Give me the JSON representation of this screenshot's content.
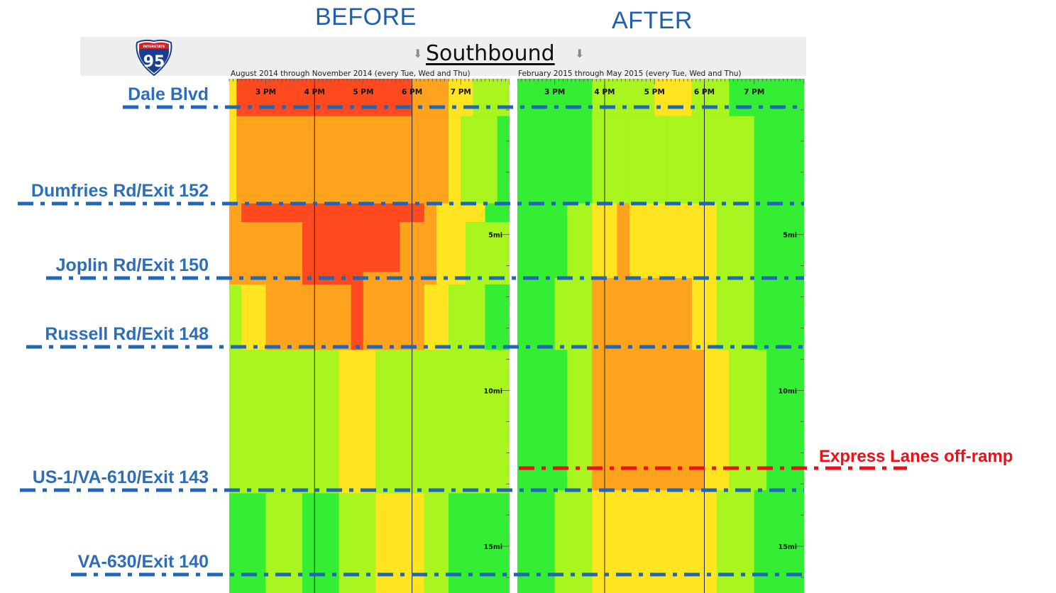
{
  "header": {
    "before_title": "BEFORE",
    "after_title": "AFTER",
    "direction_title": "Southbound",
    "shield_top_text": "INTERSTATE",
    "shield_number": "95",
    "before_range": "August 2014 through November 2014 (every Tue, Wed and Thu)",
    "after_range": "February 2015 through May 2015 (every Tue, Wed and Thu)"
  },
  "locations": [
    {
      "name": "Dale Blvd",
      "mile": 0.9
    },
    {
      "name": "Dumfries Rd/Exit 152",
      "mile": 4.0
    },
    {
      "name": "Joplin Rd/Exit 150",
      "mile": 6.4
    },
    {
      "name": "Russell Rd/Exit 148",
      "mile": 8.6
    },
    {
      "name": "US-1/VA-610/Exit 143",
      "mile": 13.2
    },
    {
      "name": "VA-630/Exit 140",
      "mile": 15.9
    }
  ],
  "express_lanes": {
    "label": "Express Lanes off-ramp",
    "mile": 12.5
  },
  "colors": {
    "red": "#ff4a1f",
    "orange": "#ffa31f",
    "yellow": "#ffe41f",
    "yellow_green": "#a8f51f",
    "green": "#33ee33",
    "location_line": "#1f67b8",
    "offramp_line": "#e8121b",
    "title_blue": "#1f5fb0"
  },
  "chart_data": {
    "type": "heatmap",
    "title": "Southbound",
    "x_unit": "time of day",
    "x_range": [
      "2:15 PM",
      "8:00 PM"
    ],
    "x_ticks": [
      "3 PM",
      "4 PM",
      "5 PM",
      "6 PM",
      "7 PM"
    ],
    "y_unit": "miles",
    "y_range": [
      0,
      16.5
    ],
    "y_ticks": [
      "5mi",
      "10mi",
      "15mi"
    ],
    "grid": "hour lines at 4 PM and 6 PM",
    "congestion_levels": [
      "red",
      "orange",
      "yellow",
      "yellow_green",
      "green"
    ],
    "panels": [
      {
        "name": "BEFORE",
        "period": "August 2014 through November 2014 (every Tue, Wed and Thu)",
        "cells": [
          {
            "mile": [
              0.0,
              1.2
            ],
            "time": [
              2.25,
              2.4
            ],
            "level": "yellow"
          },
          {
            "mile": [
              0.0,
              1.2
            ],
            "time": [
              2.4,
              6.0
            ],
            "level": "red"
          },
          {
            "mile": [
              0.0,
              1.2
            ],
            "time": [
              6.0,
              6.75
            ],
            "level": "orange"
          },
          {
            "mile": [
              0.0,
              1.2
            ],
            "time": [
              6.75,
              7.25
            ],
            "level": "yellow"
          },
          {
            "mile": [
              0.0,
              1.2
            ],
            "time": [
              7.25,
              8.0
            ],
            "level": "yellow_green"
          },
          {
            "mile": [
              1.2,
              4.0
            ],
            "time": [
              2.25,
              2.4
            ],
            "level": "yellow"
          },
          {
            "mile": [
              1.2,
              4.0
            ],
            "time": [
              2.4,
              6.75
            ],
            "level": "orange"
          },
          {
            "mile": [
              1.2,
              4.0
            ],
            "time": [
              6.75,
              7.0
            ],
            "level": "yellow"
          },
          {
            "mile": [
              1.2,
              4.0
            ],
            "time": [
              7.0,
              7.75
            ],
            "level": "yellow_green"
          },
          {
            "mile": [
              1.2,
              4.0
            ],
            "time": [
              7.75,
              8.0
            ],
            "level": "green"
          },
          {
            "mile": [
              4.0,
              4.6
            ],
            "time": [
              2.25,
              2.5
            ],
            "level": "orange"
          },
          {
            "mile": [
              4.0,
              4.6
            ],
            "time": [
              2.5,
              6.25
            ],
            "level": "red"
          },
          {
            "mile": [
              4.0,
              4.6
            ],
            "time": [
              6.25,
              6.5
            ],
            "level": "orange"
          },
          {
            "mile": [
              4.0,
              4.6
            ],
            "time": [
              6.5,
              7.5
            ],
            "level": "yellow"
          },
          {
            "mile": [
              4.0,
              4.6
            ],
            "time": [
              7.5,
              8.0
            ],
            "level": "green"
          },
          {
            "mile": [
              4.6,
              6.2
            ],
            "time": [
              2.25,
              3.75
            ],
            "level": "orange"
          },
          {
            "mile": [
              4.6,
              6.2
            ],
            "time": [
              3.75,
              5.75
            ],
            "level": "red"
          },
          {
            "mile": [
              4.6,
              6.2
            ],
            "time": [
              5.75,
              6.5
            ],
            "level": "orange"
          },
          {
            "mile": [
              4.6,
              6.2
            ],
            "time": [
              6.5,
              7.1
            ],
            "level": "yellow"
          },
          {
            "mile": [
              4.6,
              6.2
            ],
            "time": [
              7.1,
              8.0
            ],
            "level": "yellow_green"
          },
          {
            "mile": [
              6.2,
              6.6
            ],
            "time": [
              2.25,
              3.75
            ],
            "level": "orange"
          },
          {
            "mile": [
              6.2,
              6.6
            ],
            "time": [
              3.75,
              5.0
            ],
            "level": "red"
          },
          {
            "mile": [
              6.2,
              6.6
            ],
            "time": [
              5.0,
              6.5
            ],
            "level": "orange"
          },
          {
            "mile": [
              6.2,
              6.6
            ],
            "time": [
              6.5,
              7.1
            ],
            "level": "yellow"
          },
          {
            "mile": [
              6.2,
              6.6
            ],
            "time": [
              7.1,
              8.0
            ],
            "level": "yellow_green"
          },
          {
            "mile": [
              6.6,
              8.7
            ],
            "time": [
              2.25,
              2.5
            ],
            "level": "yellow_green"
          },
          {
            "mile": [
              6.6,
              8.7
            ],
            "time": [
              2.5,
              3.0
            ],
            "level": "yellow"
          },
          {
            "mile": [
              6.6,
              8.7
            ],
            "time": [
              3.0,
              4.75
            ],
            "level": "orange"
          },
          {
            "mile": [
              6.6,
              8.7
            ],
            "time": [
              4.75,
              5.0
            ],
            "level": "red"
          },
          {
            "mile": [
              6.6,
              8.7
            ],
            "time": [
              5.0,
              6.25
            ],
            "level": "orange"
          },
          {
            "mile": [
              6.6,
              8.7
            ],
            "time": [
              6.25,
              6.75
            ],
            "level": "yellow"
          },
          {
            "mile": [
              6.6,
              8.7
            ],
            "time": [
              6.75,
              7.5
            ],
            "level": "yellow_green"
          },
          {
            "mile": [
              6.6,
              8.7
            ],
            "time": [
              7.5,
              8.0
            ],
            "level": "green"
          },
          {
            "mile": [
              8.7,
              13.3
            ],
            "time": [
              2.25,
              4.5
            ],
            "level": "yellow_green"
          },
          {
            "mile": [
              8.7,
              13.3
            ],
            "time": [
              4.5,
              5.25
            ],
            "level": "yellow"
          },
          {
            "mile": [
              8.7,
              13.3
            ],
            "time": [
              5.25,
              8.0
            ],
            "level": "yellow_green"
          },
          {
            "mile": [
              13.3,
              16.5
            ],
            "time": [
              2.25,
              3.0
            ],
            "level": "green"
          },
          {
            "mile": [
              13.3,
              16.5
            ],
            "time": [
              3.0,
              3.75
            ],
            "level": "yellow_green"
          },
          {
            "mile": [
              13.3,
              16.5
            ],
            "time": [
              3.75,
              4.5
            ],
            "level": "green"
          },
          {
            "mile": [
              13.3,
              16.5
            ],
            "time": [
              4.5,
              5.25
            ],
            "level": "yellow_green"
          },
          {
            "mile": [
              13.3,
              16.5
            ],
            "time": [
              5.25,
              6.25
            ],
            "level": "yellow"
          },
          {
            "mile": [
              13.3,
              16.5
            ],
            "time": [
              6.25,
              6.75
            ],
            "level": "yellow_green"
          },
          {
            "mile": [
              13.3,
              16.5
            ],
            "time": [
              6.75,
              8.0
            ],
            "level": "green"
          }
        ]
      },
      {
        "name": "AFTER",
        "period": "February 2015 through May 2015 (every Tue, Wed and Thu)",
        "cells": [
          {
            "mile": [
              0.0,
              1.2
            ],
            "time": [
              2.25,
              3.75
            ],
            "level": "green"
          },
          {
            "mile": [
              0.0,
              1.2
            ],
            "time": [
              3.75,
              5.0
            ],
            "level": "yellow_green"
          },
          {
            "mile": [
              0.0,
              1.2
            ],
            "time": [
              5.0,
              5.75
            ],
            "level": "yellow"
          },
          {
            "mile": [
              0.0,
              1.2
            ],
            "time": [
              5.75,
              6.5
            ],
            "level": "yellow_green"
          },
          {
            "mile": [
              0.0,
              1.2
            ],
            "time": [
              6.5,
              8.0
            ],
            "level": "green"
          },
          {
            "mile": [
              1.2,
              4.0
            ],
            "time": [
              2.25,
              3.75
            ],
            "level": "green"
          },
          {
            "mile": [
              1.2,
              4.0
            ],
            "time": [
              3.75,
              4.5
            ],
            "level": "yellow_green"
          },
          {
            "mile": [
              1.2,
              4.0
            ],
            "time": [
              4.5,
              5.25
            ],
            "level": "yellow_green"
          },
          {
            "mile": [
              1.2,
              4.0
            ],
            "time": [
              5.25,
              6.25
            ],
            "level": "yellow_green"
          },
          {
            "mile": [
              1.2,
              4.0
            ],
            "time": [
              6.25,
              7.0
            ],
            "level": "yellow_green"
          },
          {
            "mile": [
              1.2,
              4.0
            ],
            "time": [
              7.0,
              8.0
            ],
            "level": "green"
          },
          {
            "mile": [
              4.0,
              6.4
            ],
            "time": [
              2.25,
              3.25
            ],
            "level": "green"
          },
          {
            "mile": [
              4.0,
              6.4
            ],
            "time": [
              3.25,
              3.75
            ],
            "level": "yellow_green"
          },
          {
            "mile": [
              4.0,
              6.4
            ],
            "time": [
              3.75,
              4.25
            ],
            "level": "yellow"
          },
          {
            "mile": [
              4.0,
              6.4
            ],
            "time": [
              4.25,
              4.5
            ],
            "level": "orange"
          },
          {
            "mile": [
              4.0,
              6.4
            ],
            "time": [
              4.5,
              6.25
            ],
            "level": "yellow"
          },
          {
            "mile": [
              4.0,
              6.4
            ],
            "time": [
              6.25,
              7.0
            ],
            "level": "yellow_green"
          },
          {
            "mile": [
              4.0,
              6.4
            ],
            "time": [
              7.0,
              8.0
            ],
            "level": "green"
          },
          {
            "mile": [
              6.4,
              8.7
            ],
            "time": [
              2.25,
              3.0
            ],
            "level": "green"
          },
          {
            "mile": [
              6.4,
              8.7
            ],
            "time": [
              3.0,
              3.75
            ],
            "level": "yellow_green"
          },
          {
            "mile": [
              6.4,
              8.7
            ],
            "time": [
              3.75,
              5.75
            ],
            "level": "orange"
          },
          {
            "mile": [
              6.4,
              8.7
            ],
            "time": [
              5.75,
              6.25
            ],
            "level": "yellow"
          },
          {
            "mile": [
              6.4,
              8.7
            ],
            "time": [
              6.25,
              7.0
            ],
            "level": "yellow_green"
          },
          {
            "mile": [
              6.4,
              8.7
            ],
            "time": [
              7.0,
              8.0
            ],
            "level": "green"
          },
          {
            "mile": [
              8.7,
              13.2
            ],
            "time": [
              2.25,
              3.25
            ],
            "level": "green"
          },
          {
            "mile": [
              8.7,
              13.2
            ],
            "time": [
              3.25,
              3.75
            ],
            "level": "yellow_green"
          },
          {
            "mile": [
              8.7,
              13.2
            ],
            "time": [
              3.75,
              6.0
            ],
            "level": "orange"
          },
          {
            "mile": [
              8.7,
              13.2
            ],
            "time": [
              6.0,
              6.5
            ],
            "level": "yellow"
          },
          {
            "mile": [
              8.7,
              13.2
            ],
            "time": [
              6.5,
              7.25
            ],
            "level": "yellow_green"
          },
          {
            "mile": [
              8.7,
              13.2
            ],
            "time": [
              7.25,
              8.0
            ],
            "level": "green"
          },
          {
            "mile": [
              13.2,
              16.5
            ],
            "time": [
              2.25,
              3.0
            ],
            "level": "green"
          },
          {
            "mile": [
              13.2,
              16.5
            ],
            "time": [
              3.0,
              3.75
            ],
            "level": "yellow_green"
          },
          {
            "mile": [
              13.2,
              16.5
            ],
            "time": [
              3.75,
              6.25
            ],
            "level": "yellow"
          },
          {
            "mile": [
              13.2,
              16.5
            ],
            "time": [
              6.25,
              7.0
            ],
            "level": "yellow_green"
          },
          {
            "mile": [
              13.2,
              16.5
            ],
            "time": [
              7.0,
              8.0
            ],
            "level": "green"
          }
        ]
      }
    ]
  }
}
